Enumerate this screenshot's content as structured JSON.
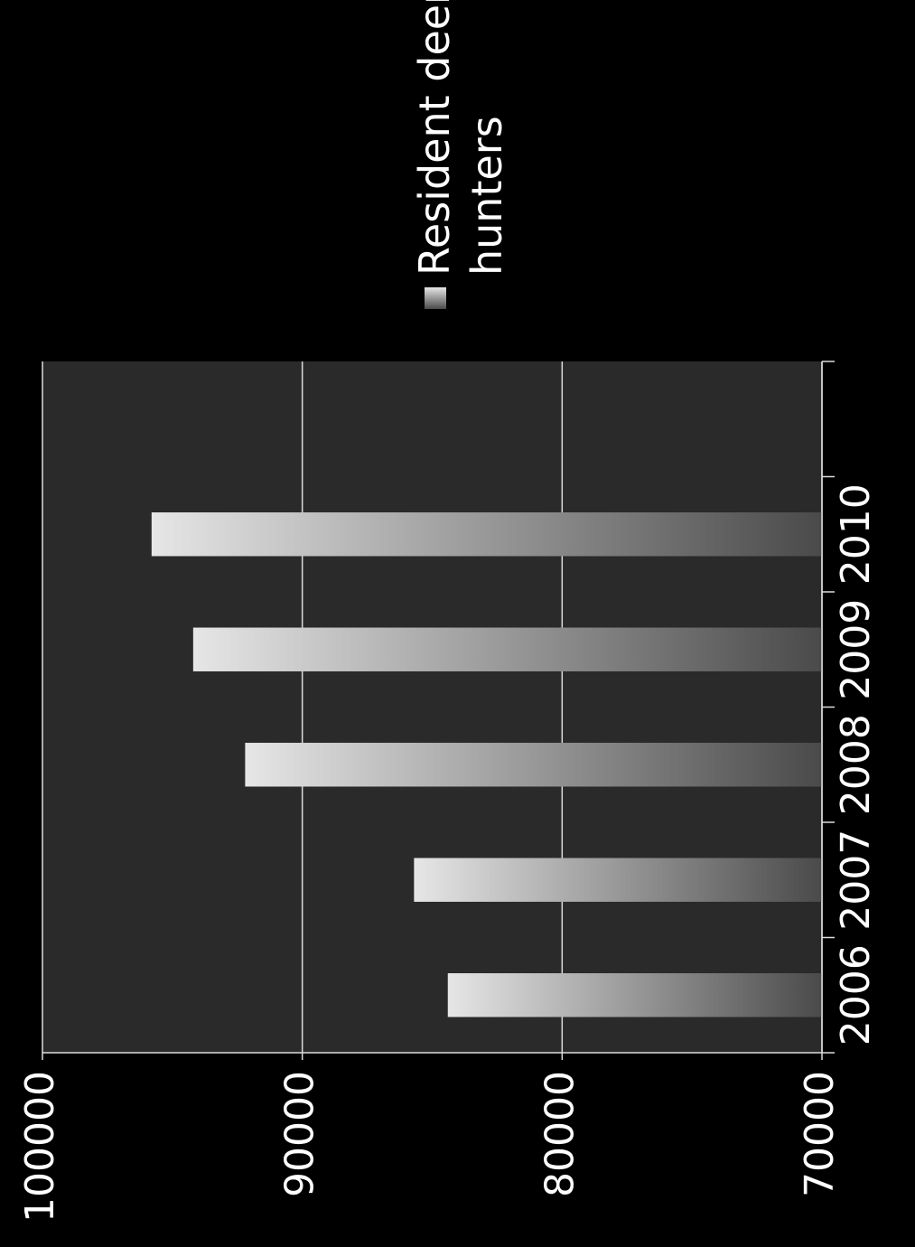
{
  "chart_data": {
    "type": "bar",
    "orientation": "rotated-90-clockwise",
    "title": "",
    "xlabel": "",
    "ylabel": "",
    "categories": [
      "2006",
      "2007",
      "2008",
      "2009",
      "2010"
    ],
    "series": [
      {
        "name": "Resident deer hunters",
        "values": [
          84400,
          85700,
          92200,
          94200,
          95800
        ]
      }
    ],
    "ylim": [
      70000,
      100000
    ],
    "y_ticks": [
      "70000",
      "80000",
      "90000",
      "100000"
    ],
    "grid": true,
    "legend": {
      "position": "right",
      "lines": [
        "Resident deer",
        "hunters"
      ]
    },
    "colors": {
      "background": "#000000",
      "plot_area": "#2a2a2a",
      "gridline": "#dcdcdc",
      "bar_light": "#e6e6e6",
      "bar_dark": "#4a4a4a",
      "text": "#ffffff"
    }
  }
}
